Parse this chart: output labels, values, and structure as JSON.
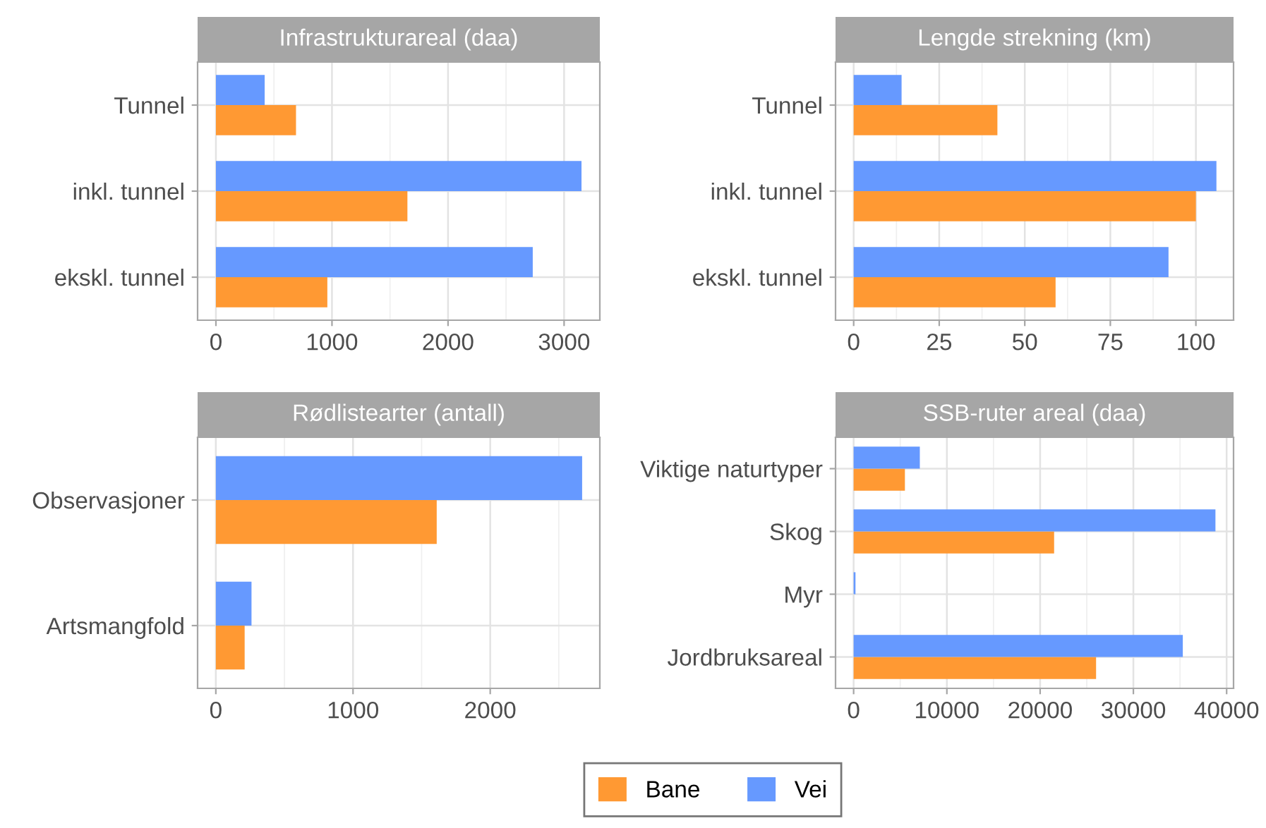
{
  "chart_data": [
    {
      "type": "bar",
      "orientation": "horizontal",
      "title": "Infrastrukturareal (daa)",
      "categories": [
        "Tunnel",
        "inkl. tunnel",
        "ekskl. tunnel"
      ],
      "series": [
        {
          "name": "Bane",
          "color": "#ff9933",
          "values": [
            690,
            1650,
            960
          ]
        },
        {
          "name": "Vei",
          "color": "#6699ff",
          "values": [
            420,
            3150,
            2730
          ]
        }
      ],
      "xlim": [
        -158,
        3308
      ],
      "xticks": [
        0,
        1000,
        2000,
        3000
      ],
      "grid": true,
      "legend": "bottom"
    },
    {
      "type": "bar",
      "orientation": "horizontal",
      "title": "Lengde strekning (km)",
      "categories": [
        "Tunnel",
        "inkl. tunnel",
        "ekskl. tunnel"
      ],
      "series": [
        {
          "name": "Bane",
          "color": "#ff9933",
          "values": [
            42,
            100,
            59
          ]
        },
        {
          "name": "Vei",
          "color": "#6699ff",
          "values": [
            14,
            106,
            92
          ]
        }
      ],
      "xlim": [
        -5.3,
        111
      ],
      "xticks": [
        0,
        25,
        50,
        75,
        100
      ],
      "grid": true,
      "legend": "bottom"
    },
    {
      "type": "bar",
      "orientation": "horizontal",
      "title": "Rødlistearter (antall)",
      "categories": [
        "Observasjoner",
        "Artsmangfold"
      ],
      "series": [
        {
          "name": "Bane",
          "color": "#ff9933",
          "values": [
            1610,
            210
          ]
        },
        {
          "name": "Vei",
          "color": "#6699ff",
          "values": [
            2670,
            260
          ]
        }
      ],
      "xlim": [
        -133,
        2799
      ],
      "xticks": [
        0,
        1000,
        2000
      ],
      "grid": true,
      "legend": "bottom"
    },
    {
      "type": "bar",
      "orientation": "horizontal",
      "title": "SSB-ruter areal (daa)",
      "categories": [
        "Viktige naturtyper",
        "Skog",
        "Myr",
        "Jordbruksareal"
      ],
      "series": [
        {
          "name": "Bane",
          "color": "#ff9933",
          "values": [
            5500,
            21500,
            null,
            26000
          ]
        },
        {
          "name": "Vei",
          "color": "#6699ff",
          "values": [
            7100,
            38800,
            200,
            35300
          ]
        }
      ],
      "xlim": [
        -1940,
        40740
      ],
      "xticks": [
        0,
        10000,
        20000,
        30000,
        40000
      ],
      "grid": true,
      "legend": "bottom"
    }
  ]
}
